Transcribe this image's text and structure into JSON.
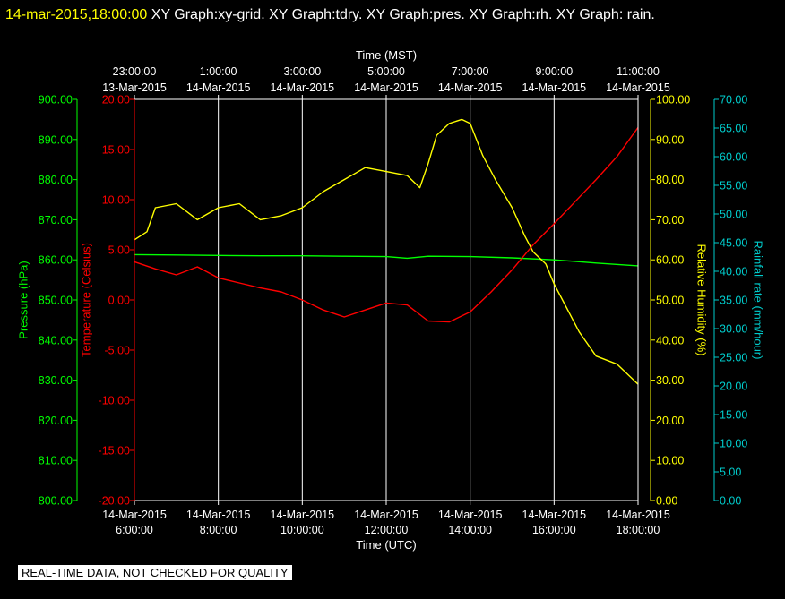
{
  "header": {
    "timestamp": "14-mar-2015,18:00:00",
    "titles": "XY Graph:xy-grid.  XY Graph:tdry.  XY Graph:pres.  XY Graph:rh.  XY Graph: rain."
  },
  "footer": {
    "notice": "REAL-TIME DATA, NOT CHECKED FOR QUALITY"
  },
  "colors": {
    "background": "#000000",
    "grid": "#ffffff",
    "pressure": "#00ff00",
    "temperature": "#ff0000",
    "humidity": "#ffff00",
    "rainfall": "#00cccc"
  },
  "chart_data": {
    "type": "line",
    "grid": true,
    "xlabel_bottom": "Time (UTC)",
    "xlabel_top": "Time (MST)",
    "x_range_hours_utc": [
      6,
      18
    ],
    "bottom_ticks": [
      {
        "h": 6,
        "l1": "14-Mar-2015",
        "l2": "6:00:00"
      },
      {
        "h": 8,
        "l1": "14-Mar-2015",
        "l2": "8:00:00"
      },
      {
        "h": 10,
        "l1": "14-Mar-2015",
        "l2": "10:00:00"
      },
      {
        "h": 12,
        "l1": "14-Mar-2015",
        "l2": "12:00:00"
      },
      {
        "h": 14,
        "l1": "14-Mar-2015",
        "l2": "14:00:00"
      },
      {
        "h": 16,
        "l1": "14-Mar-2015",
        "l2": "16:00:00"
      },
      {
        "h": 18,
        "l1": "14-Mar-2015",
        "l2": "18:00:00"
      }
    ],
    "top_ticks": [
      {
        "h": 6,
        "l1": "23:00:00",
        "l2": "13-Mar-2015"
      },
      {
        "h": 8,
        "l1": "1:00:00",
        "l2": "14-Mar-2015"
      },
      {
        "h": 10,
        "l1": "3:00:00",
        "l2": "14-Mar-2015"
      },
      {
        "h": 12,
        "l1": "5:00:00",
        "l2": "14-Mar-2015"
      },
      {
        "h": 14,
        "l1": "7:00:00",
        "l2": "14-Mar-2015"
      },
      {
        "h": 16,
        "l1": "9:00:00",
        "l2": "14-Mar-2015"
      },
      {
        "h": 18,
        "l1": "11:00:00",
        "l2": "14-Mar-2015"
      }
    ],
    "axes": {
      "pressure": {
        "label": "Pressure (hPa)",
        "range": [
          800,
          900
        ],
        "step": 10,
        "decimals": 2
      },
      "temperature": {
        "label": "Temperature (Celsius)",
        "range": [
          -20,
          20
        ],
        "step": 5,
        "decimals": 2
      },
      "humidity": {
        "label": "Relative Humidity (%)",
        "range": [
          0,
          100
        ],
        "step": 10,
        "decimals": 2
      },
      "rainfall": {
        "label": "Rainfall rate (mm/hour)",
        "range": [
          0,
          70
        ],
        "step": 5,
        "decimals": 2
      }
    },
    "series": [
      {
        "key": "pressure",
        "x": [
          6,
          7,
          8,
          9,
          10,
          11,
          12,
          12.5,
          13,
          14,
          15,
          16,
          17,
          18
        ],
        "y": [
          861.3,
          861.2,
          861.1,
          861.0,
          861.0,
          860.9,
          860.8,
          860.4,
          860.9,
          860.8,
          860.5,
          860.0,
          859.2,
          858.5
        ]
      },
      {
        "key": "temperature",
        "x": [
          6,
          6.5,
          7,
          7.5,
          8,
          8.5,
          9,
          9.5,
          10,
          10.5,
          11,
          11.5,
          12,
          12.5,
          13,
          13.5,
          14,
          14.5,
          15,
          15.5,
          16,
          16.5,
          17,
          17.5,
          18
        ],
        "y": [
          3.8,
          3.1,
          2.5,
          3.3,
          2.2,
          1.7,
          1.2,
          0.8,
          0.0,
          -1.0,
          -1.7,
          -1.0,
          -0.3,
          -0.5,
          -2.1,
          -2.2,
          -1.2,
          0.8,
          3.0,
          5.5,
          7.6,
          9.8,
          12.0,
          14.3,
          17.2
        ]
      },
      {
        "key": "humidity",
        "x": [
          6,
          6.3,
          6.5,
          7,
          7.5,
          8,
          8.5,
          9,
          9.5,
          10,
          10.5,
          11,
          11.5,
          12,
          12.5,
          12.8,
          13,
          13.2,
          13.5,
          13.8,
          14,
          14.3,
          14.6,
          15,
          15.3,
          15.5,
          15.8,
          16,
          16.3,
          16.6,
          17,
          17.5,
          18
        ],
        "y": [
          65,
          67,
          73,
          74,
          70,
          73,
          74,
          70,
          71,
          73,
          77,
          80,
          83,
          82,
          81,
          78,
          84,
          91,
          94,
          95,
          94,
          86,
          80,
          73,
          66,
          62,
          59,
          54,
          48,
          42,
          36,
          34,
          29
        ]
      },
      {
        "key": "rainfall",
        "x": [],
        "y": []
      }
    ]
  }
}
